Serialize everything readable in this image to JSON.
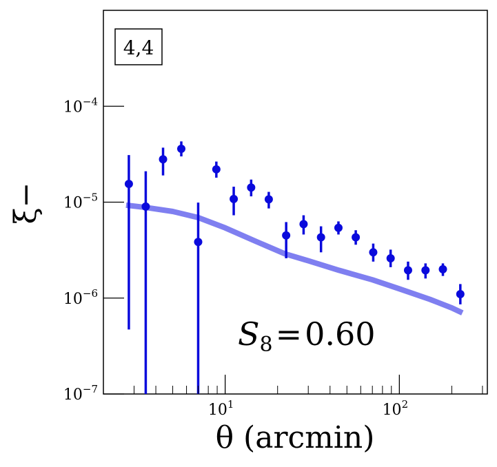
{
  "panel_label": "4,4",
  "annotation": {
    "prefix": "S",
    "subscript": "8",
    "equals": "=",
    "value": "0.60"
  },
  "chart_data": {
    "type": "scatter",
    "title": "",
    "xlabel": "θ (arcmin)",
    "ylabel": "ξ−",
    "xscale": "log",
    "yscale": "log",
    "xlim": [
      2.0,
      320.0
    ],
    "ylim": [
      1e-07,
      0.001
    ],
    "x_ticks": [
      {
        "value": 10,
        "base": "10",
        "exp": "1"
      },
      {
        "value": 100,
        "base": "10",
        "exp": "2"
      }
    ],
    "y_ticks": [
      {
        "value": 1e-07,
        "base": "10",
        "exp": "−7"
      },
      {
        "value": 1e-06,
        "base": "10",
        "exp": "−6"
      },
      {
        "value": 1e-05,
        "base": "10",
        "exp": "−5"
      },
      {
        "value": 0.0001,
        "base": "10",
        "exp": "−4"
      }
    ],
    "grid": false,
    "colors": {
      "points": "#0a0adc",
      "model": "#7f7ff0"
    },
    "points": [
      {
        "x": 2.8,
        "y": 1.55e-05,
        "lo": 4.7e-07,
        "hi": 3.1e-05
      },
      {
        "x": 3.5,
        "y": 9e-06,
        "lo": 1e-08,
        "hi": 2.1e-05
      },
      {
        "x": 4.4,
        "y": 2.8e-05,
        "lo": 1.9e-05,
        "hi": 3.7e-05
      },
      {
        "x": 5.6,
        "y": 3.6e-05,
        "lo": 3e-05,
        "hi": 4.3e-05
      },
      {
        "x": 7.0,
        "y": 3.85e-06,
        "lo": 1e-08,
        "hi": 9.9e-06
      },
      {
        "x": 8.9,
        "y": 2.2e-05,
        "lo": 1.8e-05,
        "hi": 2.65e-05
      },
      {
        "x": 11.2,
        "y": 1.08e-05,
        "lo": 7.3e-06,
        "hi": 1.45e-05
      },
      {
        "x": 14.1,
        "y": 1.42e-05,
        "lo": 1.15e-05,
        "hi": 1.72e-05
      },
      {
        "x": 17.8,
        "y": 1.07e-05,
        "lo": 8.6e-06,
        "hi": 1.28e-05
      },
      {
        "x": 22.4,
        "y": 4.5e-06,
        "lo": 2.6e-06,
        "hi": 6.2e-06
      },
      {
        "x": 28.2,
        "y": 5.9e-06,
        "lo": 4.6e-06,
        "hi": 7.3e-06
      },
      {
        "x": 35.5,
        "y": 4.3e-06,
        "lo": 3e-06,
        "hi": 5.6e-06
      },
      {
        "x": 44.7,
        "y": 5.4e-06,
        "lo": 4.6e-06,
        "hi": 6.3e-06
      },
      {
        "x": 56.2,
        "y": 4.3e-06,
        "lo": 3.6e-06,
        "hi": 5.1e-06
      },
      {
        "x": 70.8,
        "y": 3e-06,
        "lo": 2.4e-06,
        "hi": 3.7e-06
      },
      {
        "x": 89.1,
        "y": 2.6e-06,
        "lo": 2.1e-06,
        "hi": 3.2e-06
      },
      {
        "x": 112.2,
        "y": 1.95e-06,
        "lo": 1.55e-06,
        "hi": 2.4e-06
      },
      {
        "x": 141.3,
        "y": 1.95e-06,
        "lo": 1.6e-06,
        "hi": 2.3e-06
      },
      {
        "x": 177.8,
        "y": 2e-06,
        "lo": 1.7e-06,
        "hi": 2.3e-06
      },
      {
        "x": 223.9,
        "y": 1.1e-06,
        "lo": 8.6e-07,
        "hi": 1.4e-06
      }
    ],
    "model": {
      "x": [
        2.7,
        3.5,
        5.0,
        7.0,
        10.0,
        15.0,
        22.0,
        30.0,
        45.0,
        70.0,
        100.0,
        150.0,
        200.0,
        230.0
      ],
      "y": [
        9.3e-06,
        8.8e-06,
        8e-06,
        6.9e-06,
        5.4e-06,
        3.9e-06,
        2.9e-06,
        2.45e-06,
        1.95e-06,
        1.55e-06,
        1.25e-06,
        9.7e-07,
        7.9e-07,
        7e-07
      ]
    }
  }
}
